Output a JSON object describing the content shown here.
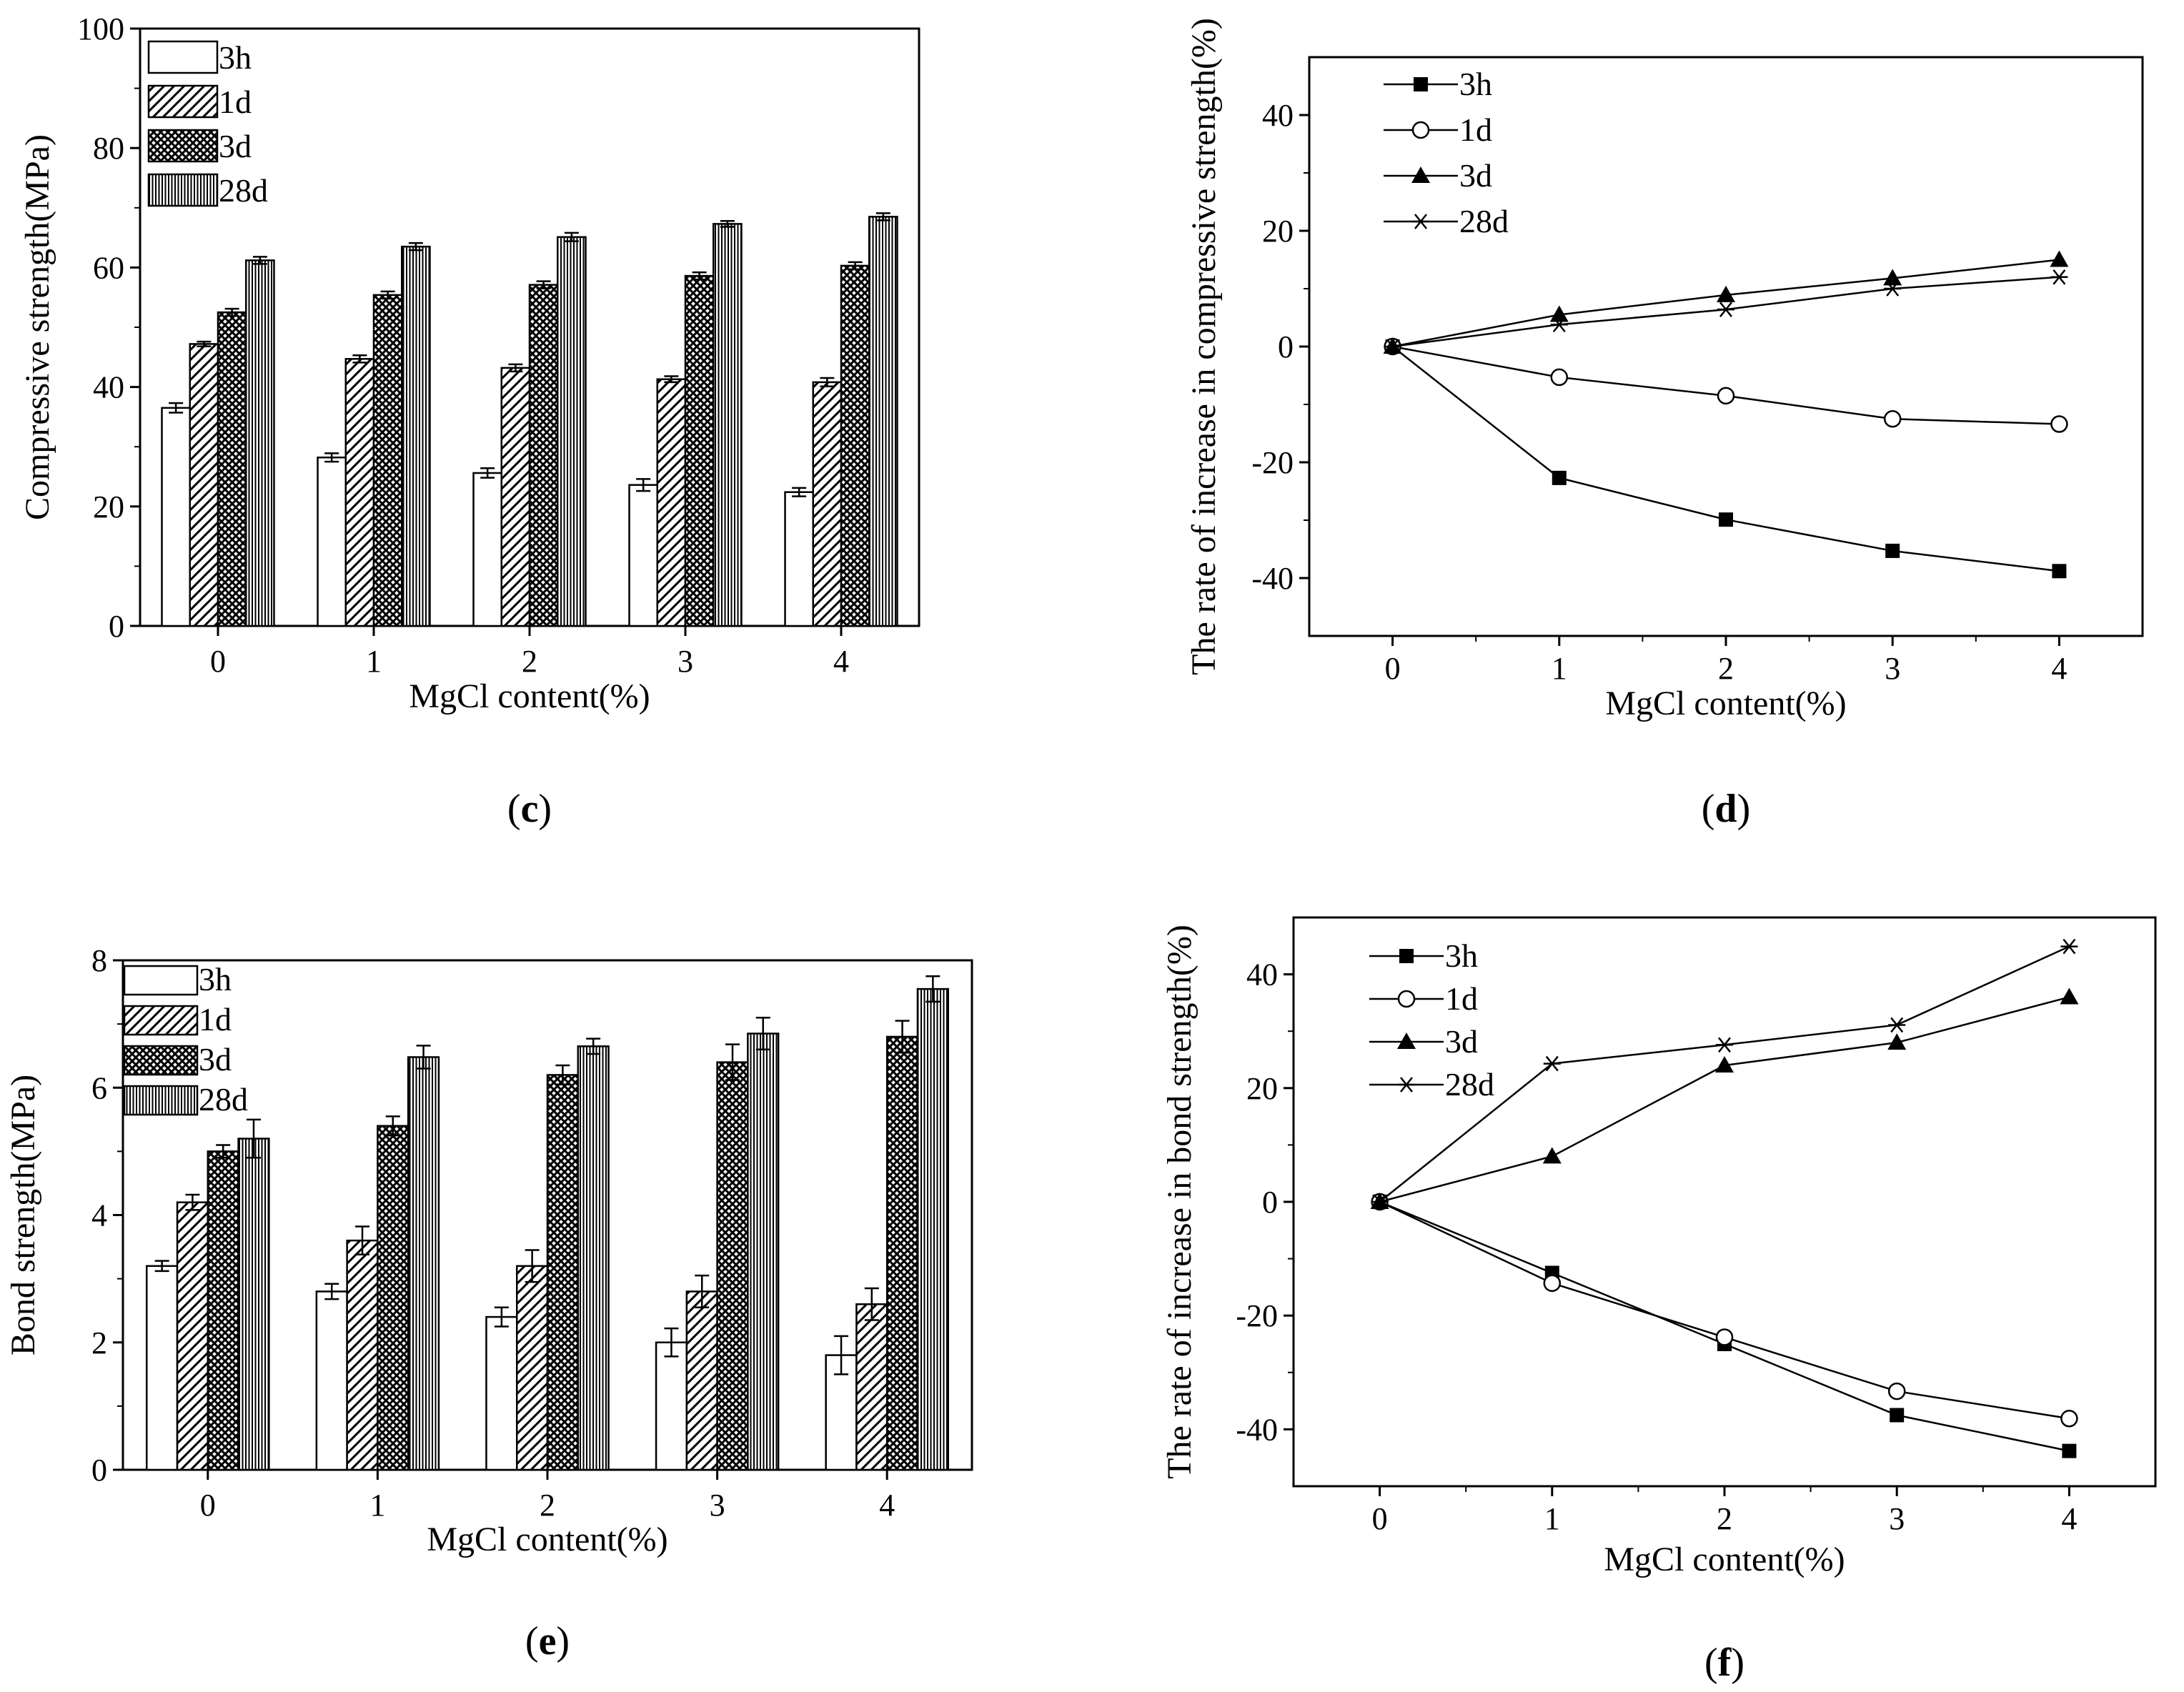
{
  "chart_data": [
    {
      "id": "c",
      "panel_label": "c",
      "type": "bar",
      "xlabel": "MgCl content(%)",
      "ylabel": "Compressive strength(MPa)",
      "categories": [
        "0",
        "1",
        "2",
        "3",
        "4"
      ],
      "ylim": [
        0,
        100
      ],
      "yticks": [
        0,
        20,
        40,
        60,
        80,
        100
      ],
      "legend_position": "top-left",
      "series": [
        {
          "name": "3h",
          "pattern": "white",
          "values": [
            36.5,
            28.2,
            25.6,
            23.6,
            22.4
          ],
          "errors": [
            0.8,
            0.7,
            0.8,
            1.0,
            0.7
          ]
        },
        {
          "name": "1d",
          "pattern": "diagonal",
          "values": [
            47.2,
            44.7,
            43.2,
            41.3,
            40.8
          ],
          "errors": [
            0.4,
            0.6,
            0.6,
            0.5,
            0.7
          ]
        },
        {
          "name": "3d",
          "pattern": "crosshatch",
          "values": [
            52.5,
            55.4,
            57.1,
            58.6,
            60.3
          ],
          "errors": [
            0.6,
            0.6,
            0.6,
            0.6,
            0.6
          ]
        },
        {
          "name": "28d",
          "pattern": "vertical",
          "values": [
            61.2,
            63.5,
            65.1,
            67.3,
            68.5
          ],
          "errors": [
            0.6,
            0.6,
            0.7,
            0.5,
            0.6
          ]
        }
      ]
    },
    {
      "id": "d",
      "panel_label": "d",
      "type": "line",
      "xlabel": "MgCl content(%)",
      "ylabel": "The rate of increase in compressive strength(%)",
      "x": [
        0,
        1,
        2,
        3,
        4
      ],
      "xlim": [
        -0.5,
        4.5
      ],
      "ylim": [
        -50,
        50
      ],
      "xticks": [
        0,
        1,
        2,
        3,
        4
      ],
      "yticks": [
        -40,
        -20,
        0,
        20,
        40
      ],
      "legend_position": "top-left",
      "series": [
        {
          "name": "3h",
          "marker": "square-filled",
          "values": [
            0,
            -22.7,
            -29.9,
            -35.3,
            -38.8
          ]
        },
        {
          "name": "1d",
          "marker": "circle-open",
          "values": [
            0,
            -5.3,
            -8.5,
            -12.5,
            -13.4
          ]
        },
        {
          "name": "3d",
          "marker": "triangle-filled",
          "values": [
            0,
            5.5,
            8.9,
            11.8,
            15.0
          ]
        },
        {
          "name": "28d",
          "marker": "asterisk",
          "values": [
            0,
            3.8,
            6.4,
            10.0,
            12.0
          ]
        }
      ]
    },
    {
      "id": "e",
      "panel_label": "e",
      "type": "bar",
      "xlabel": "MgCl content(%)",
      "ylabel": "Bond strength(MPa)",
      "categories": [
        "0",
        "1",
        "2",
        "3",
        "4"
      ],
      "ylim": [
        0,
        8
      ],
      "yticks": [
        0,
        2,
        4,
        6,
        8
      ],
      "legend_position": "top-left",
      "series": [
        {
          "name": "3h",
          "pattern": "white",
          "values": [
            3.2,
            2.8,
            2.4,
            2.0,
            1.8
          ],
          "errors": [
            0.08,
            0.12,
            0.15,
            0.22,
            0.3
          ]
        },
        {
          "name": "1d",
          "pattern": "diagonal",
          "values": [
            4.2,
            3.6,
            3.2,
            2.8,
            2.6
          ],
          "errors": [
            0.12,
            0.22,
            0.25,
            0.25,
            0.25
          ]
        },
        {
          "name": "3d",
          "pattern": "crosshatch",
          "values": [
            5.0,
            5.4,
            6.2,
            6.4,
            6.8
          ],
          "errors": [
            0.1,
            0.15,
            0.15,
            0.28,
            0.25
          ]
        },
        {
          "name": "28d",
          "pattern": "vertical",
          "values": [
            5.2,
            6.48,
            6.65,
            6.85,
            7.55
          ],
          "errors": [
            0.3,
            0.18,
            0.12,
            0.25,
            0.2
          ]
        }
      ]
    },
    {
      "id": "f",
      "panel_label": "f",
      "type": "line",
      "xlabel": "MgCl content(%)",
      "ylabel": "The rate of increase in bond strength(%)",
      "x": [
        0,
        1,
        2,
        3,
        4
      ],
      "xlim": [
        -0.5,
        4.5
      ],
      "ylim": [
        -50,
        50
      ],
      "xticks": [
        0,
        1,
        2,
        3,
        4
      ],
      "yticks": [
        -40,
        -20,
        0,
        20,
        40
      ],
      "legend_position": "top-left",
      "series": [
        {
          "name": "3h",
          "marker": "square-filled",
          "values": [
            0,
            -12.5,
            -25.0,
            -37.5,
            -43.8
          ]
        },
        {
          "name": "1d",
          "marker": "circle-open",
          "values": [
            0,
            -14.3,
            -23.8,
            -33.3,
            -38.1
          ]
        },
        {
          "name": "3d",
          "marker": "triangle-filled",
          "values": [
            0,
            8.0,
            24.0,
            28.0,
            36.0
          ]
        },
        {
          "name": "28d",
          "marker": "asterisk",
          "values": [
            0,
            24.3,
            27.6,
            31.1,
            44.9
          ]
        }
      ]
    }
  ]
}
